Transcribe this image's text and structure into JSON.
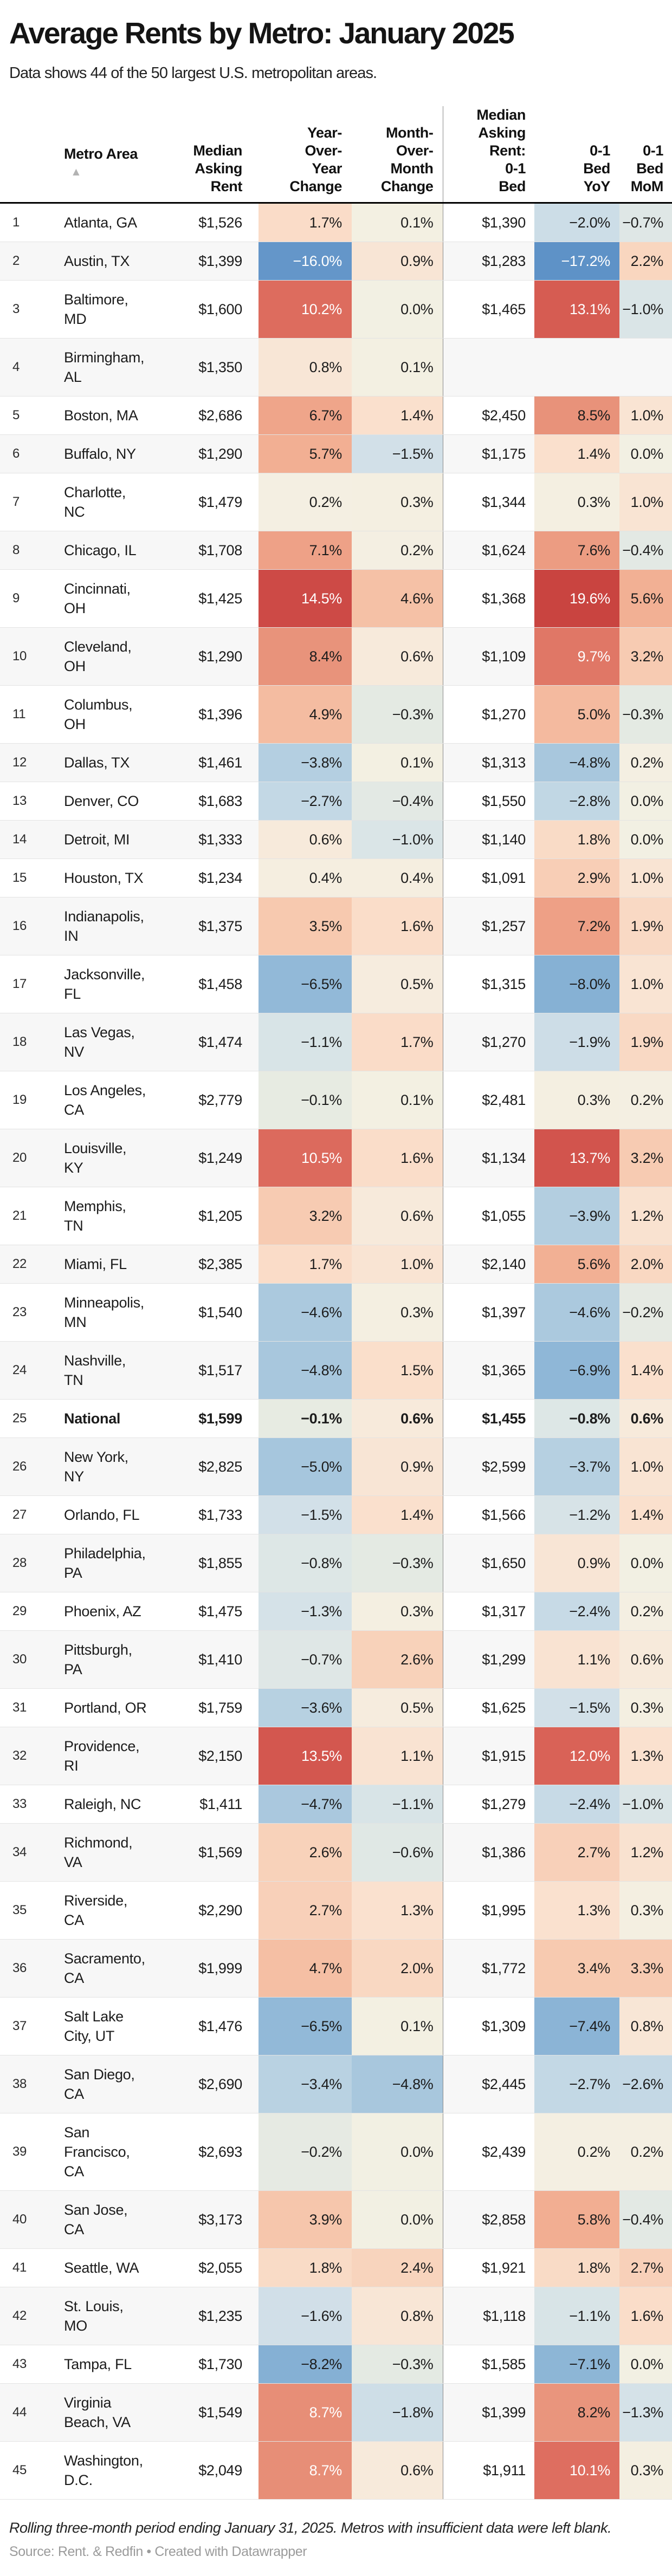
{
  "chart_data": {
    "type": "table",
    "title": "Average Rents by Metro: January 2025",
    "subtitle": "Data shows 44 of the 50 largest U.S. metropolitan areas.",
    "sort_icon": "▲",
    "columns": [
      "",
      "Metro Area",
      "Median\nAsking\nRent",
      "Year-\nOver-\nYear\nChange",
      "Month-\nOver-\nMonth\nChange",
      "Median\nAsking\nRent:\n0-1\nBed",
      "0-1\nBed\nYoY",
      "0-1\nBed\nMoM"
    ],
    "rows": [
      {
        "rank": "1",
        "metro": "Atlanta, GA",
        "median_rent": "$1,526",
        "yoy": "1.7%",
        "mom": "0.1%",
        "bed_rent": "$1,390",
        "bed_yoy": "−2.0%",
        "bed_mom": "−0.7%",
        "bold": false
      },
      {
        "rank": "2",
        "metro": "Austin, TX",
        "median_rent": "$1,399",
        "yoy": "−16.0%",
        "mom": "0.9%",
        "bed_rent": "$1,283",
        "bed_yoy": "−17.2%",
        "bed_mom": "2.2%",
        "bold": false
      },
      {
        "rank": "3",
        "metro": "Baltimore,\nMD",
        "median_rent": "$1,600",
        "yoy": "10.2%",
        "mom": "0.0%",
        "bed_rent": "$1,465",
        "bed_yoy": "13.1%",
        "bed_mom": "−1.0%",
        "bold": false
      },
      {
        "rank": "4",
        "metro": "Birmingham,\nAL",
        "median_rent": "$1,350",
        "yoy": "0.8%",
        "mom": "0.1%",
        "bed_rent": "",
        "bed_yoy": "",
        "bed_mom": "",
        "bold": false
      },
      {
        "rank": "5",
        "metro": "Boston, MA",
        "median_rent": "$2,686",
        "yoy": "6.7%",
        "mom": "1.4%",
        "bed_rent": "$2,450",
        "bed_yoy": "8.5%",
        "bed_mom": "1.0%",
        "bold": false
      },
      {
        "rank": "6",
        "metro": "Buffalo, NY",
        "median_rent": "$1,290",
        "yoy": "5.7%",
        "mom": "−1.5%",
        "bed_rent": "$1,175",
        "bed_yoy": "1.4%",
        "bed_mom": "0.0%",
        "bold": false
      },
      {
        "rank": "7",
        "metro": "Charlotte,\nNC",
        "median_rent": "$1,479",
        "yoy": "0.2%",
        "mom": "0.3%",
        "bed_rent": "$1,344",
        "bed_yoy": "0.3%",
        "bed_mom": "1.0%",
        "bold": false
      },
      {
        "rank": "8",
        "metro": "Chicago, IL",
        "median_rent": "$1,708",
        "yoy": "7.1%",
        "mom": "0.2%",
        "bed_rent": "$1,624",
        "bed_yoy": "7.6%",
        "bed_mom": "−0.4%",
        "bold": false
      },
      {
        "rank": "9",
        "metro": "Cincinnati,\nOH",
        "median_rent": "$1,425",
        "yoy": "14.5%",
        "mom": "4.6%",
        "bed_rent": "$1,368",
        "bed_yoy": "19.6%",
        "bed_mom": "5.6%",
        "bold": false
      },
      {
        "rank": "10",
        "metro": "Cleveland,\nOH",
        "median_rent": "$1,290",
        "yoy": "8.4%",
        "mom": "0.6%",
        "bed_rent": "$1,109",
        "bed_yoy": "9.7%",
        "bed_mom": "3.2%",
        "bold": false
      },
      {
        "rank": "11",
        "metro": "Columbus,\nOH",
        "median_rent": "$1,396",
        "yoy": "4.9%",
        "mom": "−0.3%",
        "bed_rent": "$1,270",
        "bed_yoy": "5.0%",
        "bed_mom": "−0.3%",
        "bold": false
      },
      {
        "rank": "12",
        "metro": "Dallas, TX",
        "median_rent": "$1,461",
        "yoy": "−3.8%",
        "mom": "0.1%",
        "bed_rent": "$1,313",
        "bed_yoy": "−4.8%",
        "bed_mom": "0.2%",
        "bold": false
      },
      {
        "rank": "13",
        "metro": "Denver, CO",
        "median_rent": "$1,683",
        "yoy": "−2.7%",
        "mom": "−0.4%",
        "bed_rent": "$1,550",
        "bed_yoy": "−2.8%",
        "bed_mom": "0.0%",
        "bold": false
      },
      {
        "rank": "14",
        "metro": "Detroit, MI",
        "median_rent": "$1,333",
        "yoy": "0.6%",
        "mom": "−1.0%",
        "bed_rent": "$1,140",
        "bed_yoy": "1.8%",
        "bed_mom": "0.0%",
        "bold": false
      },
      {
        "rank": "15",
        "metro": "Houston, TX",
        "median_rent": "$1,234",
        "yoy": "0.4%",
        "mom": "0.4%",
        "bed_rent": "$1,091",
        "bed_yoy": "2.9%",
        "bed_mom": "1.0%",
        "bold": false
      },
      {
        "rank": "16",
        "metro": "Indianapolis,\nIN",
        "median_rent": "$1,375",
        "yoy": "3.5%",
        "mom": "1.6%",
        "bed_rent": "$1,257",
        "bed_yoy": "7.2%",
        "bed_mom": "1.9%",
        "bold": false
      },
      {
        "rank": "17",
        "metro": "Jacksonville,\nFL",
        "median_rent": "$1,458",
        "yoy": "−6.5%",
        "mom": "0.5%",
        "bed_rent": "$1,315",
        "bed_yoy": "−8.0%",
        "bed_mom": "1.0%",
        "bold": false
      },
      {
        "rank": "18",
        "metro": "Las Vegas,\nNV",
        "median_rent": "$1,474",
        "yoy": "−1.1%",
        "mom": "1.7%",
        "bed_rent": "$1,270",
        "bed_yoy": "−1.9%",
        "bed_mom": "1.9%",
        "bold": false
      },
      {
        "rank": "19",
        "metro": "Los Angeles,\nCA",
        "median_rent": "$2,779",
        "yoy": "−0.1%",
        "mom": "0.1%",
        "bed_rent": "$2,481",
        "bed_yoy": "0.3%",
        "bed_mom": "0.2%",
        "bold": false
      },
      {
        "rank": "20",
        "metro": "Louisville,\nKY",
        "median_rent": "$1,249",
        "yoy": "10.5%",
        "mom": "1.6%",
        "bed_rent": "$1,134",
        "bed_yoy": "13.7%",
        "bed_mom": "3.2%",
        "bold": false
      },
      {
        "rank": "21",
        "metro": "Memphis,\nTN",
        "median_rent": "$1,205",
        "yoy": "3.2%",
        "mom": "0.6%",
        "bed_rent": "$1,055",
        "bed_yoy": "−3.9%",
        "bed_mom": "1.2%",
        "bold": false
      },
      {
        "rank": "22",
        "metro": "Miami, FL",
        "median_rent": "$2,385",
        "yoy": "1.7%",
        "mom": "1.0%",
        "bed_rent": "$2,140",
        "bed_yoy": "5.6%",
        "bed_mom": "2.0%",
        "bold": false
      },
      {
        "rank": "23",
        "metro": "Minneapolis,\nMN",
        "median_rent": "$1,540",
        "yoy": "−4.6%",
        "mom": "0.3%",
        "bed_rent": "$1,397",
        "bed_yoy": "−4.6%",
        "bed_mom": "−0.2%",
        "bold": false
      },
      {
        "rank": "24",
        "metro": "Nashville,\nTN",
        "median_rent": "$1,517",
        "yoy": "−4.8%",
        "mom": "1.5%",
        "bed_rent": "$1,365",
        "bed_yoy": "−6.9%",
        "bed_mom": "1.4%",
        "bold": false
      },
      {
        "rank": "25",
        "metro": "National",
        "median_rent": "$1,599",
        "yoy": "−0.1%",
        "mom": "0.6%",
        "bed_rent": "$1,455",
        "bed_yoy": "−0.8%",
        "bed_mom": "0.6%",
        "bold": true
      },
      {
        "rank": "26",
        "metro": "New York,\nNY",
        "median_rent": "$2,825",
        "yoy": "−5.0%",
        "mom": "0.9%",
        "bed_rent": "$2,599",
        "bed_yoy": "−3.7%",
        "bed_mom": "1.0%",
        "bold": false
      },
      {
        "rank": "27",
        "metro": "Orlando, FL",
        "median_rent": "$1,733",
        "yoy": "−1.5%",
        "mom": "1.4%",
        "bed_rent": "$1,566",
        "bed_yoy": "−1.2%",
        "bed_mom": "1.4%",
        "bold": false
      },
      {
        "rank": "28",
        "metro": "Philadelphia,\nPA",
        "median_rent": "$1,855",
        "yoy": "−0.8%",
        "mom": "−0.3%",
        "bed_rent": "$1,650",
        "bed_yoy": "0.9%",
        "bed_mom": "0.0%",
        "bold": false
      },
      {
        "rank": "29",
        "metro": "Phoenix, AZ",
        "median_rent": "$1,475",
        "yoy": "−1.3%",
        "mom": "0.3%",
        "bed_rent": "$1,317",
        "bed_yoy": "−2.4%",
        "bed_mom": "0.2%",
        "bold": false
      },
      {
        "rank": "30",
        "metro": "Pittsburgh,\nPA",
        "median_rent": "$1,410",
        "yoy": "−0.7%",
        "mom": "2.6%",
        "bed_rent": "$1,299",
        "bed_yoy": "1.1%",
        "bed_mom": "0.6%",
        "bold": false
      },
      {
        "rank": "31",
        "metro": "Portland, OR",
        "median_rent": "$1,759",
        "yoy": "−3.6%",
        "mom": "0.5%",
        "bed_rent": "$1,625",
        "bed_yoy": "−1.5%",
        "bed_mom": "0.3%",
        "bold": false
      },
      {
        "rank": "32",
        "metro": "Providence,\nRI",
        "median_rent": "$2,150",
        "yoy": "13.5%",
        "mom": "1.1%",
        "bed_rent": "$1,915",
        "bed_yoy": "12.0%",
        "bed_mom": "1.3%",
        "bold": false
      },
      {
        "rank": "33",
        "metro": "Raleigh, NC",
        "median_rent": "$1,411",
        "yoy": "−4.7%",
        "mom": "−1.1%",
        "bed_rent": "$1,279",
        "bed_yoy": "−2.4%",
        "bed_mom": "−1.0%",
        "bold": false
      },
      {
        "rank": "34",
        "metro": "Richmond,\nVA",
        "median_rent": "$1,569",
        "yoy": "2.6%",
        "mom": "−0.6%",
        "bed_rent": "$1,386",
        "bed_yoy": "2.7%",
        "bed_mom": "1.2%",
        "bold": false
      },
      {
        "rank": "35",
        "metro": "Riverside,\nCA",
        "median_rent": "$2,290",
        "yoy": "2.7%",
        "mom": "1.3%",
        "bed_rent": "$1,995",
        "bed_yoy": "1.3%",
        "bed_mom": "0.3%",
        "bold": false
      },
      {
        "rank": "36",
        "metro": "Sacramento,\nCA",
        "median_rent": "$1,999",
        "yoy": "4.7%",
        "mom": "2.0%",
        "bed_rent": "$1,772",
        "bed_yoy": "3.4%",
        "bed_mom": "3.3%",
        "bold": false
      },
      {
        "rank": "37",
        "metro": "Salt Lake\nCity, UT",
        "median_rent": "$1,476",
        "yoy": "−6.5%",
        "mom": "0.1%",
        "bed_rent": "$1,309",
        "bed_yoy": "−7.4%",
        "bed_mom": "0.8%",
        "bold": false
      },
      {
        "rank": "38",
        "metro": "San Diego,\nCA",
        "median_rent": "$2,690",
        "yoy": "−3.4%",
        "mom": "−4.8%",
        "bed_rent": "$2,445",
        "bed_yoy": "−2.7%",
        "bed_mom": "−2.6%",
        "bold": false
      },
      {
        "rank": "39",
        "metro": "San\nFrancisco,\nCA",
        "median_rent": "$2,693",
        "yoy": "−0.2%",
        "mom": "0.0%",
        "bed_rent": "$2,439",
        "bed_yoy": "0.2%",
        "bed_mom": "0.2%",
        "bold": false
      },
      {
        "rank": "40",
        "metro": "San Jose,\nCA",
        "median_rent": "$3,173",
        "yoy": "3.9%",
        "mom": "0.0%",
        "bed_rent": "$2,858",
        "bed_yoy": "5.8%",
        "bed_mom": "−0.4%",
        "bold": false
      },
      {
        "rank": "41",
        "metro": "Seattle, WA",
        "median_rent": "$2,055",
        "yoy": "1.8%",
        "mom": "2.4%",
        "bed_rent": "$1,921",
        "bed_yoy": "1.8%",
        "bed_mom": "2.7%",
        "bold": false
      },
      {
        "rank": "42",
        "metro": "St. Louis,\nMO",
        "median_rent": "$1,235",
        "yoy": "−1.6%",
        "mom": "0.8%",
        "bed_rent": "$1,118",
        "bed_yoy": "−1.1%",
        "bed_mom": "1.6%",
        "bold": false
      },
      {
        "rank": "43",
        "metro": "Tampa, FL",
        "median_rent": "$1,730",
        "yoy": "−8.2%",
        "mom": "−0.3%",
        "bed_rent": "$1,585",
        "bed_yoy": "−7.1%",
        "bed_mom": "0.0%",
        "bold": false
      },
      {
        "rank": "44",
        "metro": "Virginia\nBeach, VA",
        "median_rent": "$1,549",
        "yoy": "8.7%",
        "mom": "−1.8%",
        "bed_rent": "$1,399",
        "bed_yoy": "8.2%",
        "bed_mom": "−1.3%",
        "bold": false
      },
      {
        "rank": "45",
        "metro": "Washington,\nD.C.",
        "median_rent": "$2,049",
        "yoy": "8.7%",
        "mom": "0.6%",
        "bed_rent": "$1,911",
        "bed_yoy": "10.1%",
        "bed_mom": "0.3%",
        "bold": false
      }
    ],
    "note": "Rolling three-month period ending January 31, 2025. Metros with insufficient data were left blank.",
    "source": "Source: Rent. & Redfin • Created with Datawrapper"
  },
  "colors": {
    "scale": [
      [
        -18,
        "#5b8fc6"
      ],
      [
        -8,
        "#86b1d4"
      ],
      [
        -6.5,
        "#92b9d8"
      ],
      [
        -4.6,
        "#abc9de"
      ],
      [
        -3.4,
        "#b9d2e2"
      ],
      [
        -2.4,
        "#c7dae6"
      ],
      [
        -1.5,
        "#d2e0e8"
      ],
      [
        -1.0,
        "#dae5e7"
      ],
      [
        -0.6,
        "#e0e8e5"
      ],
      [
        -0.1,
        "#e7ebe2"
      ],
      [
        0.0,
        "#f2f0e3"
      ],
      [
        0.4,
        "#f5eee0"
      ],
      [
        0.8,
        "#f8e6d6"
      ],
      [
        1.4,
        "#fae0cd"
      ],
      [
        2.0,
        "#f9d8c2"
      ],
      [
        3.2,
        "#f7cbb2"
      ],
      [
        4.6,
        "#f5c1a6"
      ],
      [
        5.6,
        "#f2b094"
      ],
      [
        7.2,
        "#eea086"
      ],
      [
        8.5,
        "#e8927a"
      ],
      [
        9.7,
        "#e07766"
      ],
      [
        10.2,
        "#dd6c5e"
      ],
      [
        13.1,
        "#d65c52"
      ],
      [
        14.5,
        "#cd4a46"
      ],
      [
        19.6,
        "#c94440"
      ]
    ],
    "white_text_above": 8.6,
    "white_text_below": -14,
    "white_text_color": "#ffffff",
    "stripe": "#f7f7f7",
    "divider": "#8a8a8a",
    "header_rule": "#000000",
    "row_border": "#e3e3e3"
  }
}
